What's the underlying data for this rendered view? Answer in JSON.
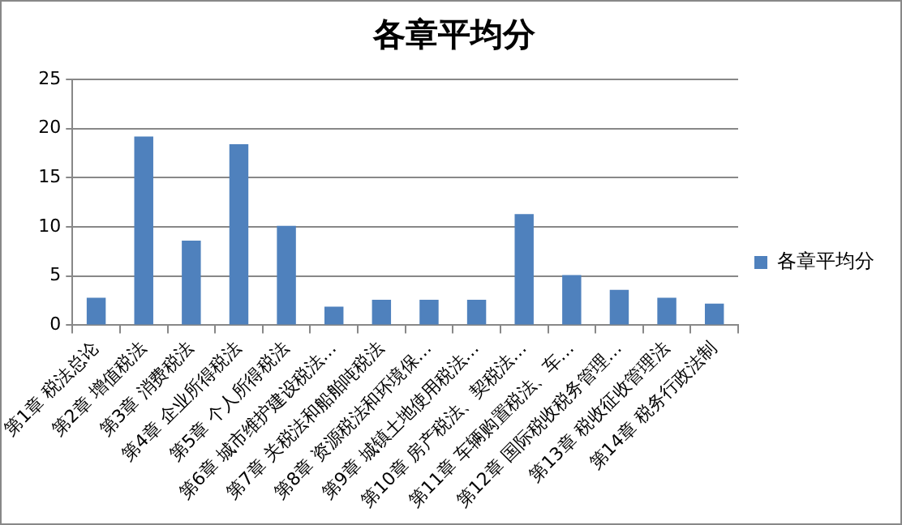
{
  "chart_data": {
    "type": "bar",
    "title": "各章平均分",
    "categories": [
      "第1章 税法总论",
      "第2章 增值税法",
      "第3章 消费税法",
      "第4章 企业所得税法",
      "第5章 个人所得税法",
      "第6章 城市维护建设税法…",
      "第7章 关税法和船舶吨税法",
      "第8章 资源税法和环境保…",
      "第9章 城镇土地使用税法…",
      "第10章 房产税法、契税法…",
      "第11章 车辆购置税法、车…",
      "第12章 国际税收税务管理…",
      "第13章 税收征收管理法",
      "第14章 税务行政法制"
    ],
    "series": [
      {
        "name": "各章平均分",
        "color": "#4f81bd",
        "values": [
          2.8,
          19.2,
          8.6,
          18.4,
          10.1,
          1.9,
          2.6,
          2.6,
          2.6,
          11.3,
          5.1,
          3.6,
          2.8,
          2.2
        ]
      }
    ],
    "ylim": [
      0,
      25
    ],
    "yticks": [
      0,
      5,
      10,
      15,
      20,
      25
    ],
    "grid": "y",
    "legend": "right"
  }
}
